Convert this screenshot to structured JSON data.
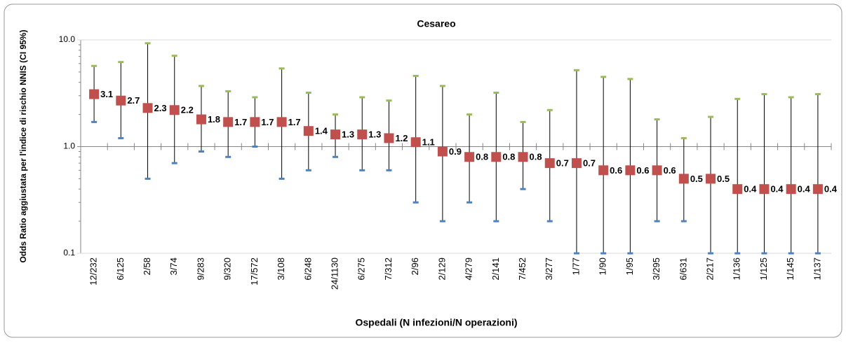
{
  "chart_data": {
    "type": "errorbar",
    "title": "Cesareo",
    "x_label": "Ospedali (N infezioni/N operazioni)",
    "y_label": "Odds Ratio aggiustata per l'indice di rischio NNIS (CI 95%)",
    "log_scale": true,
    "ylim": [
      0.1,
      10
    ],
    "yticks": [
      0.1,
      {
        "value": 1,
        "label": "1.0"
      },
      {
        "value": 10,
        "label": "10.0"
      }
    ],
    "categories": [
      "12/232",
      "6/125",
      "2/58",
      "3/74",
      "9/283",
      "9/320",
      "17/572",
      "3/108",
      "6/248",
      "24/1130",
      "6/275",
      "7/312",
      "2/96",
      "2/129",
      "4/279",
      "2/141",
      "7/452",
      "3/277",
      "1/77",
      "1/90",
      "1/95",
      "3/295",
      "6/631",
      "2/217",
      "1/136",
      "1/125",
      "1/145",
      "1/137"
    ],
    "series": [
      {
        "color": "#c0504d",
        "upper_color": "#9bbb59",
        "lower_color": "#4f81bd",
        "values": [
          3.1,
          2.7,
          2.3,
          2.2,
          1.8,
          1.7,
          1.7,
          1.7,
          1.4,
          1.3,
          1.3,
          1.2,
          1.1,
          0.9,
          0.8,
          0.8,
          0.8,
          0.7,
          0.7,
          0.6,
          0.6,
          0.6,
          0.5,
          0.5,
          0.4,
          0.4,
          0.4,
          0.4
        ],
        "upper": [
          5.7,
          6.2,
          9.3,
          7.1,
          3.7,
          3.3,
          2.9,
          5.4,
          3.2,
          2.0,
          2.9,
          2.7,
          4.6,
          3.7,
          2.0,
          3.2,
          1.7,
          2.2,
          5.2,
          4.5,
          4.3,
          1.8,
          1.2,
          1.9,
          2.8,
          3.1,
          2.9,
          3.1
        ],
        "lower": [
          1.7,
          1.2,
          0.5,
          0.7,
          0.9,
          0.8,
          1.0,
          0.5,
          0.6,
          0.8,
          0.6,
          0.6,
          0.3,
          0.2,
          0.3,
          0.2,
          0.4,
          0.2,
          0.1,
          0.1,
          0.1,
          0.2,
          0.2,
          0.1,
          0.1,
          0.1,
          0.1,
          0.1
        ]
      }
    ]
  }
}
